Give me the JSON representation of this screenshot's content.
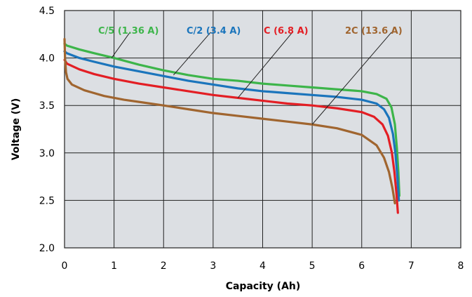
{
  "chart_data": {
    "type": "line",
    "xlabel": "Capacity (Ah)",
    "ylabel": "Voltage (V)",
    "xlim": [
      0,
      8
    ],
    "ylim": [
      2.0,
      4.5
    ],
    "xticks": [
      "0",
      "1",
      "2",
      "3",
      "4",
      "5",
      "6",
      "7",
      "8"
    ],
    "yticks": [
      "2.0",
      "2.5",
      "3.0",
      "3.5",
      "4.0",
      "4.5"
    ],
    "grid": true,
    "plot_background": "#dcdfe3",
    "series": [
      {
        "name": "C/5 (1.36 A)",
        "color": "#3db54a",
        "x": [
          0,
          0.05,
          0.3,
          0.6,
          1.0,
          1.5,
          2.0,
          2.5,
          3.0,
          3.5,
          4.0,
          4.5,
          5.0,
          5.5,
          6.0,
          6.3,
          6.5,
          6.6,
          6.67,
          6.71,
          6.74,
          6.76
        ],
        "y": [
          4.15,
          4.13,
          4.09,
          4.05,
          4.0,
          3.93,
          3.87,
          3.82,
          3.78,
          3.76,
          3.73,
          3.71,
          3.69,
          3.67,
          3.65,
          3.62,
          3.57,
          3.48,
          3.3,
          3.05,
          2.8,
          2.55
        ]
      },
      {
        "name": "C/2 (3.4 A)",
        "color": "#1b75bc",
        "x": [
          0,
          0.05,
          0.3,
          0.6,
          1.0,
          1.5,
          2.0,
          2.5,
          3.0,
          3.5,
          4.0,
          4.5,
          5.0,
          5.5,
          6.0,
          6.3,
          6.45,
          6.55,
          6.63,
          6.68,
          6.72,
          6.75
        ],
        "y": [
          4.07,
          4.05,
          4.0,
          3.96,
          3.91,
          3.86,
          3.81,
          3.76,
          3.72,
          3.68,
          3.65,
          3.63,
          3.61,
          3.59,
          3.56,
          3.52,
          3.46,
          3.37,
          3.2,
          3.0,
          2.75,
          2.5
        ]
      },
      {
        "name": "C (6.8 A)",
        "color": "#e31e24",
        "x": [
          0,
          0.05,
          0.3,
          0.6,
          1.0,
          1.5,
          2.0,
          2.5,
          3.0,
          3.5,
          4.0,
          4.5,
          5.0,
          5.5,
          6.0,
          6.25,
          6.42,
          6.53,
          6.61,
          6.66,
          6.7,
          6.73
        ],
        "y": [
          3.98,
          3.94,
          3.88,
          3.83,
          3.78,
          3.73,
          3.69,
          3.65,
          3.61,
          3.58,
          3.55,
          3.52,
          3.5,
          3.47,
          3.43,
          3.38,
          3.3,
          3.18,
          3.0,
          2.8,
          2.58,
          2.37
        ]
      },
      {
        "name": "2C (13.6 A)",
        "color": "#a0652f",
        "x": [
          0,
          0.01,
          0.03,
          0.06,
          0.15,
          0.4,
          0.8,
          1.2,
          1.6,
          2.0,
          2.5,
          3.0,
          3.5,
          4.0,
          4.5,
          5.0,
          5.5,
          6.0,
          6.3,
          6.45,
          6.55,
          6.62,
          6.67
        ],
        "y": [
          4.2,
          4.0,
          3.85,
          3.78,
          3.72,
          3.66,
          3.6,
          3.56,
          3.53,
          3.5,
          3.46,
          3.42,
          3.39,
          3.36,
          3.33,
          3.3,
          3.26,
          3.19,
          3.08,
          2.95,
          2.8,
          2.63,
          2.47
        ]
      }
    ],
    "annotations": [
      {
        "series": 0,
        "text": "C/5 (1.36 A)",
        "at": [
          0.95,
          4.0
        ],
        "to": [
          1.32,
          4.27
        ]
      },
      {
        "series": 1,
        "text": "C/2 (3.4 A)",
        "at": [
          2.2,
          3.82
        ],
        "to": [
          2.95,
          4.27
        ]
      },
      {
        "series": 2,
        "text": "C (6.8 A)",
        "at": [
          3.5,
          3.58
        ],
        "to": [
          4.6,
          4.27
        ]
      },
      {
        "series": 3,
        "text": "2C (13.6 A)",
        "at": [
          5.0,
          3.3
        ],
        "to": [
          6.6,
          4.27
        ]
      }
    ]
  }
}
